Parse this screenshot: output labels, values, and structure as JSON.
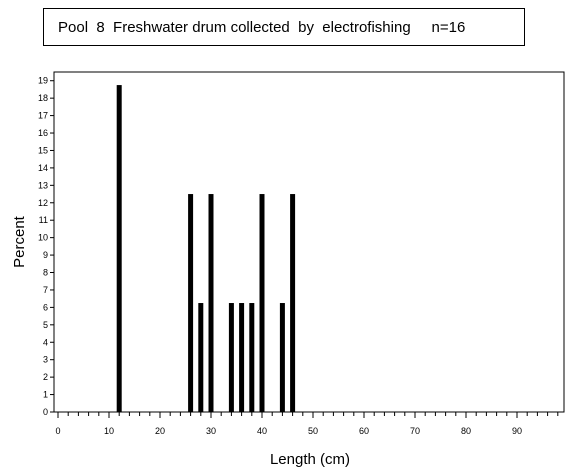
{
  "chart_data": {
    "type": "bar",
    "title": "Pool  8  Freshwater drum collected  by  electrofishing     n=16",
    "xlabel": "Length  (cm)",
    "ylabel": "Percent",
    "xlim": [
      0,
      100
    ],
    "ylim": [
      0,
      19.5
    ],
    "x_ticks": [
      0,
      10,
      20,
      30,
      40,
      50,
      60,
      70,
      80,
      90
    ],
    "y_ticks": [
      0,
      1,
      2,
      3,
      4,
      5,
      6,
      7,
      8,
      9,
      10,
      11,
      12,
      13,
      14,
      15,
      16,
      17,
      18,
      19
    ],
    "x_minor_step": 2,
    "grid": false,
    "bar_color": "#000000",
    "x": [
      12,
      26,
      28,
      30,
      34,
      36,
      38,
      40,
      44,
      46
    ],
    "values": [
      18.75,
      12.5,
      6.25,
      12.5,
      6.25,
      6.25,
      6.25,
      12.5,
      6.25,
      12.5
    ]
  }
}
